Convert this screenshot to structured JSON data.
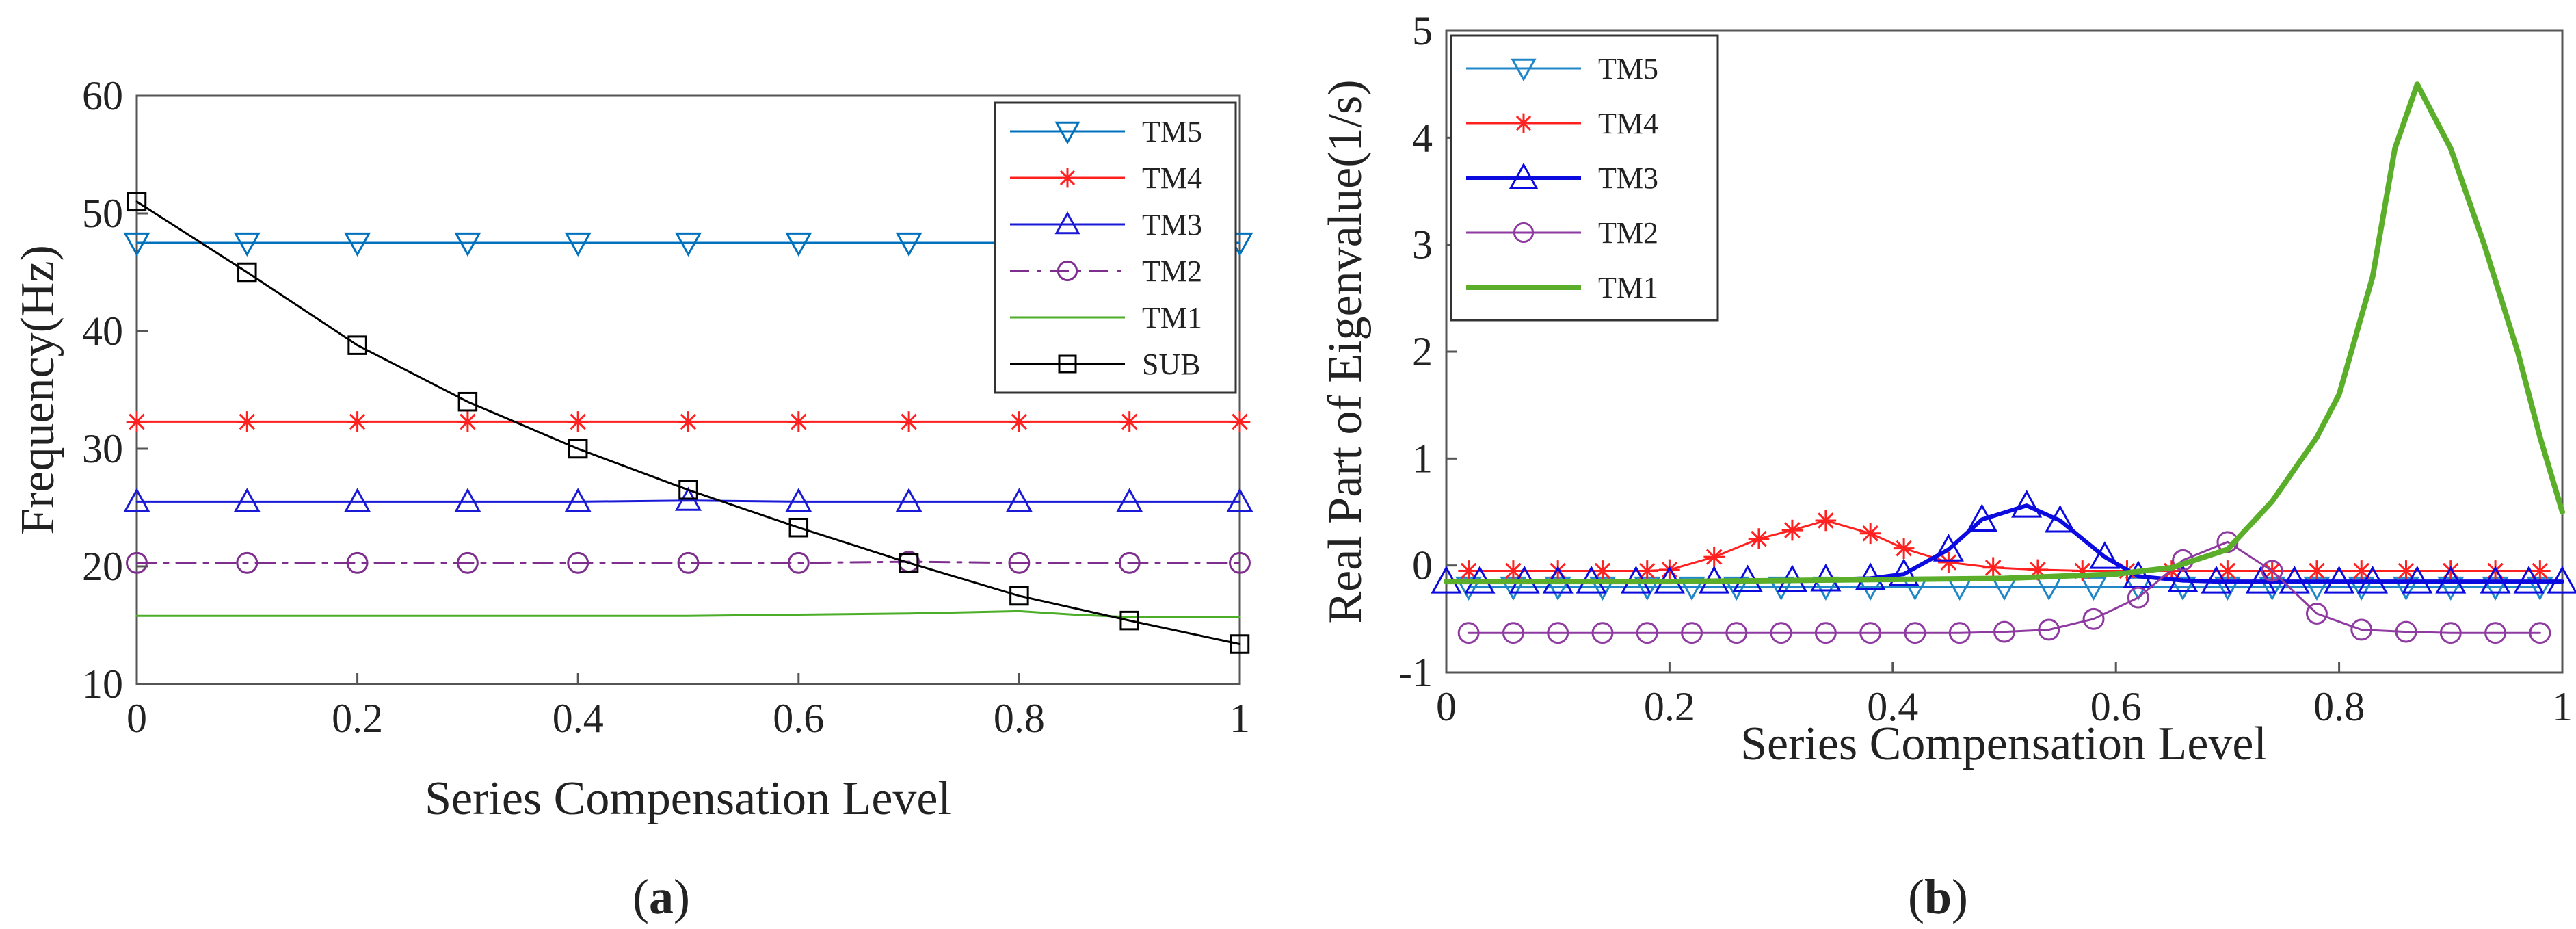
{
  "figure": {
    "panel_a_caption": "(a)",
    "panel_a_letter": "a",
    "panel_b_caption": "(b)",
    "panel_b_letter": "b"
  },
  "chart_data": [
    {
      "type": "line",
      "panel": "a",
      "title": "",
      "xlabel": "Series Compensation Level",
      "ylabel": "Frequency(Hz)",
      "xlim": [
        0,
        1
      ],
      "ylim": [
        10,
        60
      ],
      "xticks": [
        0,
        0.2,
        0.4,
        0.6,
        0.8,
        1
      ],
      "xtick_labels": [
        "0",
        "0.2",
        "0.4",
        "0.6",
        "0.8",
        "1"
      ],
      "yticks": [
        10,
        20,
        30,
        40,
        50,
        60
      ],
      "ytick_labels": [
        "10",
        "20",
        "30",
        "40",
        "50",
        "60"
      ],
      "grid": false,
      "legend_position": "top-right",
      "series": [
        {
          "name": "TM5",
          "color": "#0072bd",
          "marker": "triangle-down",
          "dash": "solid",
          "width": 3,
          "x": [
            0,
            0.1,
            0.2,
            0.3,
            0.4,
            0.5,
            0.6,
            0.7,
            0.8,
            0.9,
            1.0
          ],
          "y": [
            47.5,
            47.5,
            47.5,
            47.5,
            47.5,
            47.5,
            47.5,
            47.5,
            47.5,
            47.5,
            47.5
          ]
        },
        {
          "name": "TM4",
          "color": "#ff2020",
          "marker": "asterisk",
          "dash": "solid",
          "width": 3,
          "x": [
            0,
            0.1,
            0.2,
            0.3,
            0.4,
            0.5,
            0.6,
            0.7,
            0.8,
            0.9,
            1.0
          ],
          "y": [
            32.3,
            32.3,
            32.3,
            32.3,
            32.3,
            32.3,
            32.3,
            32.3,
            32.3,
            32.3,
            32.3
          ]
        },
        {
          "name": "TM3",
          "color": "#1a1ad6",
          "marker": "triangle-up",
          "dash": "solid",
          "width": 3,
          "x": [
            0,
            0.1,
            0.2,
            0.3,
            0.4,
            0.5,
            0.6,
            0.7,
            0.8,
            0.9,
            1.0
          ],
          "y": [
            25.5,
            25.5,
            25.5,
            25.5,
            25.5,
            25.6,
            25.5,
            25.5,
            25.5,
            25.5,
            25.5
          ]
        },
        {
          "name": "TM2",
          "color": "#7e2f8e",
          "marker": "circle",
          "dash": "dashdot",
          "width": 3,
          "x": [
            0,
            0.1,
            0.2,
            0.3,
            0.4,
            0.5,
            0.6,
            0.7,
            0.8,
            0.9,
            1.0
          ],
          "y": [
            20.3,
            20.3,
            20.3,
            20.3,
            20.3,
            20.3,
            20.3,
            20.4,
            20.3,
            20.3,
            20.3
          ]
        },
        {
          "name": "TM1",
          "color": "#4cae28",
          "marker": "none",
          "dash": "solid",
          "width": 3,
          "x": [
            0,
            0.1,
            0.2,
            0.3,
            0.4,
            0.5,
            0.6,
            0.7,
            0.75,
            0.8,
            0.85,
            0.9,
            1.0
          ],
          "y": [
            15.8,
            15.8,
            15.8,
            15.8,
            15.8,
            15.8,
            15.9,
            16.0,
            16.1,
            16.2,
            15.9,
            15.7,
            15.7
          ]
        },
        {
          "name": "SUB",
          "color": "#000000",
          "marker": "square",
          "dash": "solid",
          "width": 3,
          "x": [
            0,
            0.1,
            0.2,
            0.3,
            0.4,
            0.5,
            0.6,
            0.7,
            0.8,
            0.9,
            1.0
          ],
          "y": [
            51.0,
            45.0,
            38.8,
            34.0,
            30.0,
            26.5,
            23.3,
            20.3,
            17.5,
            15.4,
            13.4
          ]
        }
      ]
    },
    {
      "type": "line",
      "panel": "b",
      "title": "",
      "xlabel": "Series Compensation Level",
      "ylabel": "Real Part of Eigenvalue(1/s)",
      "xlim": [
        0,
        1
      ],
      "ylim": [
        -1,
        5
      ],
      "xticks": [
        0,
        0.2,
        0.4,
        0.6,
        0.8,
        1
      ],
      "xtick_labels": [
        "0",
        "0.2",
        "0.4",
        "0.6",
        "0.8",
        "1"
      ],
      "yticks": [
        -1,
        0,
        1,
        2,
        3,
        4,
        5
      ],
      "ytick_labels": [
        "-1",
        "0",
        "1",
        "2",
        "3",
        "4",
        "5"
      ],
      "grid": false,
      "legend_position": "top-left",
      "series": [
        {
          "name": "TM5",
          "color": "#1f86c8",
          "marker": "triangle-down",
          "dash": "solid",
          "width": 3,
          "x": [
            0.02,
            0.06,
            0.1,
            0.14,
            0.18,
            0.22,
            0.26,
            0.3,
            0.34,
            0.38,
            0.42,
            0.46,
            0.5,
            0.54,
            0.58,
            0.62,
            0.66,
            0.7,
            0.74,
            0.78,
            0.82,
            0.86,
            0.9,
            0.94,
            0.98
          ],
          "y": [
            -0.2,
            -0.2,
            -0.2,
            -0.2,
            -0.2,
            -0.2,
            -0.2,
            -0.2,
            -0.2,
            -0.2,
            -0.2,
            -0.2,
            -0.2,
            -0.2,
            -0.2,
            -0.2,
            -0.2,
            -0.2,
            -0.2,
            -0.2,
            -0.2,
            -0.2,
            -0.2,
            -0.2,
            -0.2
          ]
        },
        {
          "name": "TM4",
          "color": "#ff2020",
          "marker": "asterisk",
          "dash": "solid",
          "width": 3,
          "x": [
            0.02,
            0.06,
            0.1,
            0.14,
            0.18,
            0.2,
            0.24,
            0.28,
            0.31,
            0.34,
            0.38,
            0.41,
            0.45,
            0.49,
            0.53,
            0.57,
            0.61,
            0.65,
            0.7,
            0.74,
            0.78,
            0.82,
            0.86,
            0.9,
            0.94,
            0.98
          ],
          "y": [
            -0.05,
            -0.05,
            -0.05,
            -0.05,
            -0.05,
            -0.04,
            0.08,
            0.25,
            0.33,
            0.42,
            0.3,
            0.16,
            0.03,
            -0.02,
            -0.04,
            -0.05,
            -0.05,
            -0.05,
            -0.05,
            -0.05,
            -0.05,
            -0.05,
            -0.05,
            -0.05,
            -0.05,
            -0.05
          ]
        },
        {
          "name": "TM3",
          "color": "#0b0bdf",
          "marker": "triangle-up",
          "dash": "solid",
          "width": 6,
          "x": [
            0.0,
            0.03,
            0.07,
            0.1,
            0.13,
            0.17,
            0.2,
            0.24,
            0.27,
            0.31,
            0.34,
            0.38,
            0.41,
            0.45,
            0.48,
            0.52,
            0.55,
            0.59,
            0.62,
            0.66,
            0.69,
            0.73,
            0.76,
            0.8,
            0.83,
            0.87,
            0.9,
            0.94,
            0.97,
            1.0
          ],
          "y": [
            -0.15,
            -0.15,
            -0.15,
            -0.15,
            -0.15,
            -0.15,
            -0.15,
            -0.15,
            -0.14,
            -0.14,
            -0.13,
            -0.12,
            -0.08,
            0.15,
            0.43,
            0.56,
            0.42,
            0.08,
            -0.1,
            -0.14,
            -0.15,
            -0.15,
            -0.15,
            -0.15,
            -0.15,
            -0.15,
            -0.15,
            -0.15,
            -0.15,
            -0.15
          ]
        },
        {
          "name": "TM2",
          "color": "#8e3aa0",
          "marker": "circle",
          "dash": "solid",
          "width": 3,
          "x": [
            0.02,
            0.06,
            0.1,
            0.14,
            0.18,
            0.22,
            0.26,
            0.3,
            0.34,
            0.38,
            0.42,
            0.46,
            0.5,
            0.54,
            0.58,
            0.62,
            0.66,
            0.7,
            0.74,
            0.78,
            0.82,
            0.86,
            0.9,
            0.94,
            0.98
          ],
          "y": [
            -0.63,
            -0.63,
            -0.63,
            -0.63,
            -0.63,
            -0.63,
            -0.63,
            -0.63,
            -0.63,
            -0.63,
            -0.63,
            -0.63,
            -0.62,
            -0.6,
            -0.5,
            -0.3,
            0.05,
            0.22,
            -0.05,
            -0.45,
            -0.6,
            -0.62,
            -0.63,
            -0.63,
            -0.63
          ]
        },
        {
          "name": "TM1",
          "color": "#5aae2a",
          "marker": "none",
          "dash": "solid",
          "width": 8,
          "x": [
            0.0,
            0.1,
            0.2,
            0.3,
            0.4,
            0.5,
            0.6,
            0.65,
            0.7,
            0.74,
            0.78,
            0.8,
            0.83,
            0.85,
            0.87,
            0.9,
            0.93,
            0.96,
            0.98,
            1.0
          ],
          "y": [
            -0.15,
            -0.15,
            -0.15,
            -0.14,
            -0.13,
            -0.12,
            -0.08,
            -0.02,
            0.15,
            0.6,
            1.2,
            1.6,
            2.7,
            3.9,
            4.5,
            3.9,
            3.0,
            2.0,
            1.2,
            0.5
          ]
        }
      ]
    }
  ]
}
